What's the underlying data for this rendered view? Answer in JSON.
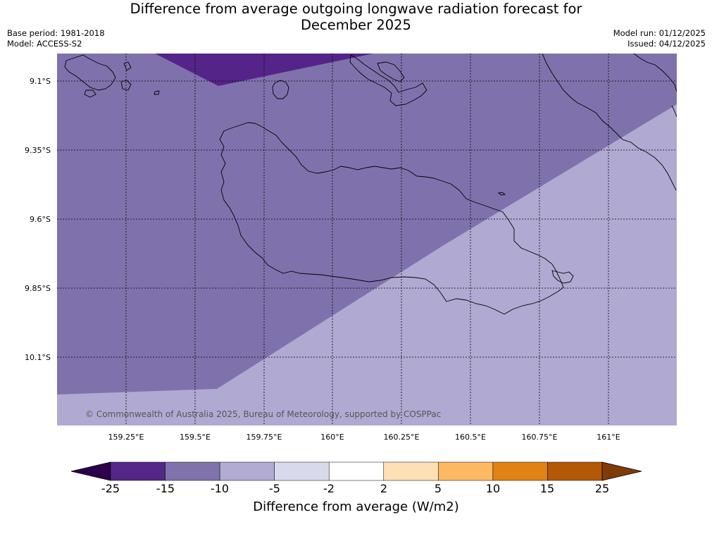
{
  "header": {
    "title_line1": "Difference from average outgoing longwave radiation forecast for",
    "title_line2": "December 2025",
    "base_period": "Base period: 1981-2018",
    "model": "Model: ACCESS-S2",
    "model_run": "Model run: 01/12/2025",
    "issued": "Issued: 04/12/2025"
  },
  "map": {
    "region": "Guadalcanal, Solomon Islands",
    "lat_labels": [
      "9.1°S",
      "9.35°S",
      "9.6°S",
      "9.85°S",
      "10.1°S"
    ],
    "lon_labels": [
      "159.25°E",
      "159.5°E",
      "159.75°E",
      "160°E",
      "160.25°E",
      "160.5°E",
      "160.75°E",
      "161°E"
    ],
    "copyright": "© Commonwealth of Australia 2025, Bureau of Meteorology, supported by COSPPac",
    "fill_colors": {
      "minus15_minus10": "#7f72ac",
      "minus10_minus5": "#b0aad2",
      "minus25_minus15": "#552488"
    }
  },
  "legend": {
    "title": "Difference from average (W/m2)",
    "tick_labels": [
      "-25",
      "-15",
      "-10",
      "-5",
      "-2",
      "2",
      "5",
      "10",
      "15",
      "25"
    ],
    "colors": [
      "#2d004b",
      "#542788",
      "#8073ac",
      "#b2abd2",
      "#d8daeb",
      "#ffffff",
      "#fee0b6",
      "#fdb863",
      "#e08214",
      "#b35806",
      "#7f3b08"
    ]
  }
}
